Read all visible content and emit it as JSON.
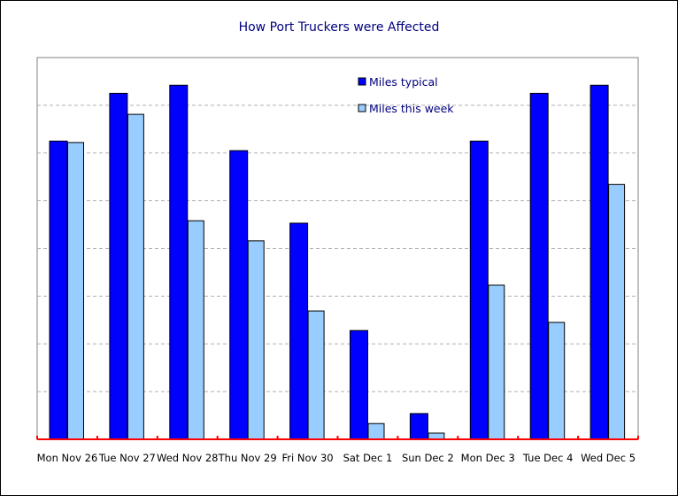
{
  "chart_data": {
    "type": "bar",
    "title": "How Port Truckers were Affected",
    "categories": [
      "Mon Nov 26",
      "Tue Nov 27",
      "Wed Nov 28",
      "Thu Nov 29",
      "Fri Nov 30",
      "Sat Dec 1",
      "Sun Dec 2",
      "Mon Dec 3",
      "Tue Dec 4",
      "Wed Dec 5"
    ],
    "series": [
      {
        "name": "Miles typical",
        "color": "#0000FF",
        "values": [
          6.25,
          7.25,
          7.42,
          6.05,
          4.53,
          2.28,
          0.54,
          6.25,
          7.25,
          7.42
        ]
      },
      {
        "name": "Miles this week",
        "color": "#99CCFF",
        "values": [
          6.22,
          6.81,
          4.58,
          4.16,
          2.69,
          0.33,
          0.13,
          3.23,
          2.45,
          5.34
        ]
      }
    ],
    "xlabel": "",
    "ylabel": "",
    "ylim": [
      0,
      8
    ],
    "y_tick_labels_shown": false,
    "grid": "horizontal dashed",
    "legend": "top-center inside plot",
    "axis_color": "#FF0000",
    "title_color": "#000080"
  }
}
